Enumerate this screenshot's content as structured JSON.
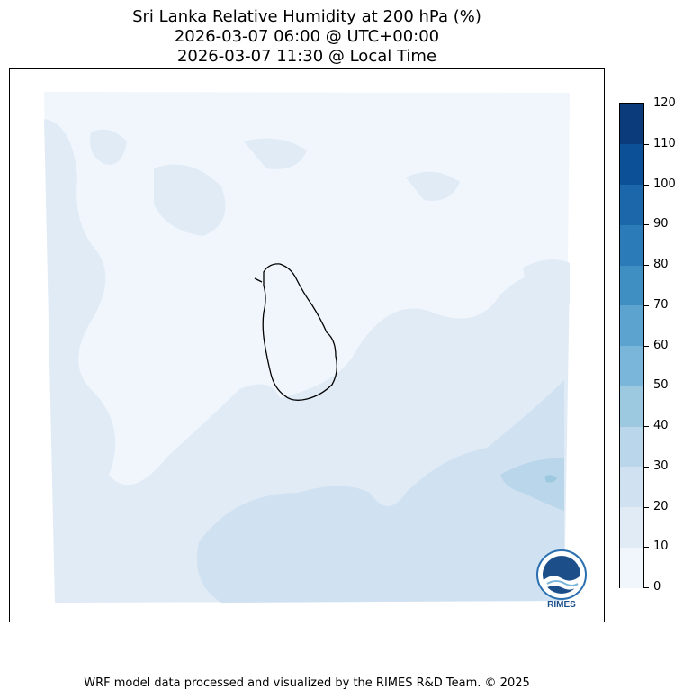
{
  "header": {
    "title_line1": "Sri Lanka Relative Humidity at 200 hPa (%)",
    "title_line2": "2026-03-07 06:00 @ UTC+00:00",
    "title_line3": "2026-03-07 11:30 @ Local Time"
  },
  "colorbar": {
    "ticks": [
      "0",
      "10",
      "20",
      "30",
      "40",
      "50",
      "60",
      "70",
      "80",
      "90",
      "100",
      "110",
      "120"
    ],
    "colors": [
      "#f0f6fc",
      "#e0ebf6",
      "#d0e1f1",
      "#b9d6ea",
      "#9cc9e0",
      "#7ab6d9",
      "#5ca3d0",
      "#408fc2",
      "#2b7bb9",
      "#1c66aa",
      "#0c5097",
      "#0b3b7a"
    ]
  },
  "logo": {
    "text": "RIMES",
    "icon": "rimes-logo-icon"
  },
  "footer": {
    "credit": "WRF model data processed and visualized by the RIMES R&D Team. © 2025"
  }
}
